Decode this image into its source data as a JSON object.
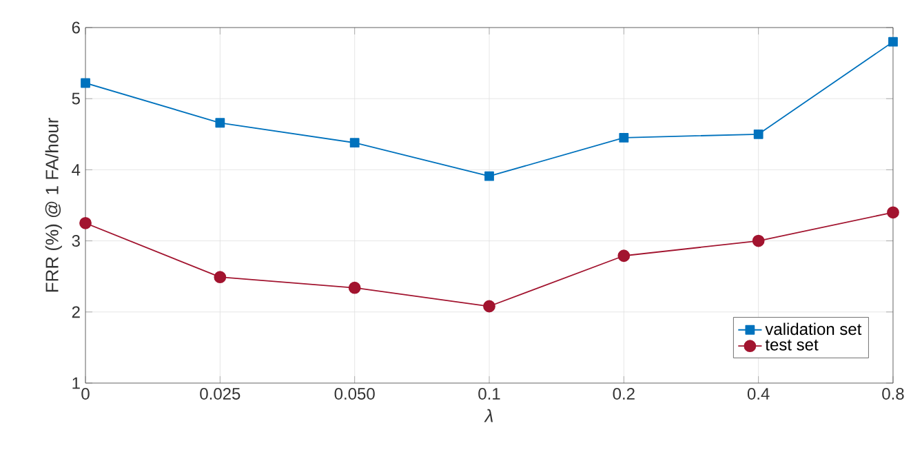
{
  "chart_data": {
    "type": "line",
    "xlabel": "λ",
    "ylabel": "FRR (%) @ 1 FA/hour",
    "categories": [
      "0",
      "0.025",
      "0.050",
      "0.1",
      "0.2",
      "0.4",
      "0.8"
    ],
    "series": [
      {
        "name": "validation set",
        "color": "#0072bd",
        "marker": "square",
        "values": [
          5.22,
          4.66,
          4.38,
          3.91,
          4.45,
          4.5,
          5.8
        ]
      },
      {
        "name": "test set",
        "color": "#a2142f",
        "marker": "circle",
        "values": [
          3.25,
          2.49,
          2.34,
          2.08,
          2.79,
          3.0,
          3.4
        ]
      }
    ],
    "ylim": [
      1,
      6
    ],
    "yticks": [
      1,
      2,
      3,
      4,
      5,
      6
    ],
    "grid": true,
    "legend": "bottom right"
  }
}
